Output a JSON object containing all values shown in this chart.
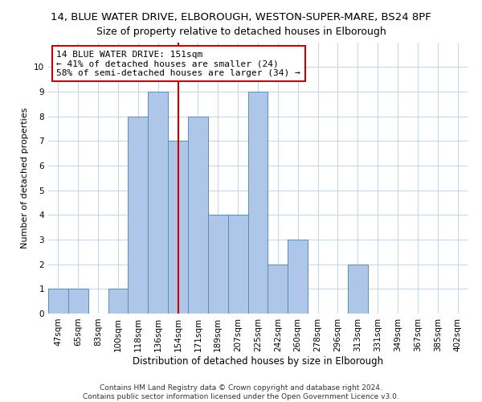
{
  "title1": "14, BLUE WATER DRIVE, ELBOROUGH, WESTON-SUPER-MARE, BS24 8PF",
  "title2": "Size of property relative to detached houses in Elborough",
  "xlabel": "Distribution of detached houses by size in Elborough",
  "ylabel": "Number of detached properties",
  "categories": [
    "47sqm",
    "65sqm",
    "83sqm",
    "100sqm",
    "118sqm",
    "136sqm",
    "154sqm",
    "171sqm",
    "189sqm",
    "207sqm",
    "225sqm",
    "242sqm",
    "260sqm",
    "278sqm",
    "296sqm",
    "313sqm",
    "331sqm",
    "349sqm",
    "367sqm",
    "385sqm",
    "402sqm"
  ],
  "values": [
    1,
    1,
    0,
    1,
    8,
    9,
    7,
    8,
    4,
    4,
    9,
    2,
    3,
    0,
    0,
    2,
    0,
    0,
    0,
    0,
    0
  ],
  "bar_color": "#aec6e8",
  "bar_edgecolor": "#5b8db8",
  "vline_x": 6,
  "vline_color": "#cc0000",
  "ylim": [
    0,
    11
  ],
  "yticks": [
    0,
    1,
    2,
    3,
    4,
    5,
    6,
    7,
    8,
    9,
    10,
    11
  ],
  "annotation_line1": "14 BLUE WATER DRIVE: 151sqm",
  "annotation_line2": "← 41% of detached houses are smaller (24)",
  "annotation_line3": "58% of semi-detached houses are larger (34) →",
  "annotation_box_color": "#cc0000",
  "footer1": "Contains HM Land Registry data © Crown copyright and database right 2024.",
  "footer2": "Contains public sector information licensed under the Open Government Licence v3.0.",
  "grid_color": "#c8d8e8",
  "background_color": "#ffffff",
  "title1_fontsize": 9.5,
  "title2_fontsize": 9,
  "ann_fontsize": 8,
  "ylabel_fontsize": 8,
  "xlabel_fontsize": 8.5,
  "tick_fontsize": 7.5,
  "footer_fontsize": 6.5
}
